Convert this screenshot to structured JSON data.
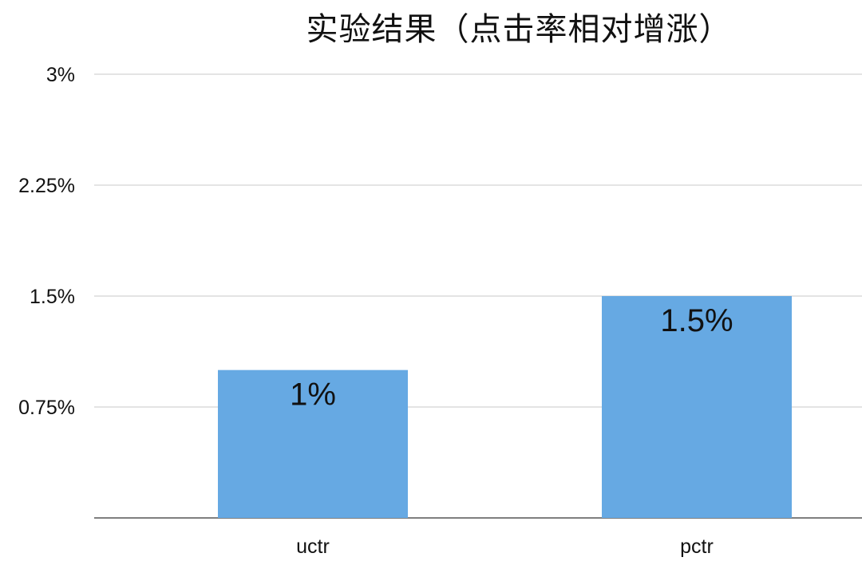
{
  "chart_data": {
    "type": "bar",
    "title": "实验结果（点击率相对增涨）",
    "xlabel": "",
    "ylabel": "",
    "categories": [
      "uctr",
      "pctr"
    ],
    "values": [
      1,
      1.5
    ],
    "value_labels": [
      "1%",
      "1.5%"
    ],
    "ylim": [
      0,
      3
    ],
    "yticks": [
      0.75,
      1.5,
      2.25,
      3
    ],
    "ytick_labels": [
      "0.75%",
      "1.5%",
      "2.25%",
      "3%"
    ],
    "grid": true,
    "legend": "none",
    "bar_color": "#66a9e3",
    "grid_color": "#c8c8c8",
    "axis_color": "#555555"
  }
}
